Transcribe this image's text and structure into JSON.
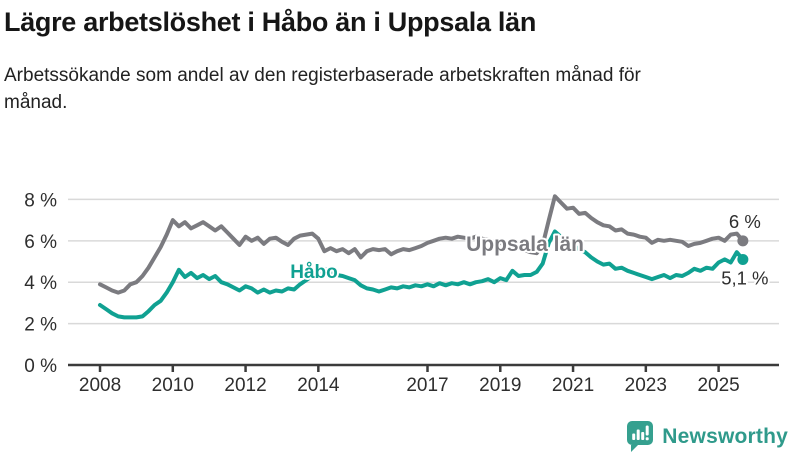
{
  "chart_data": {
    "type": "line",
    "title": "Lägre arbetslöshet i Håbo än i Uppsala län",
    "subtitle": "Arbetssökande som andel av den registerbaserade arbetskraften månad för månad.",
    "unit": "%",
    "grid": "horizontal",
    "legend_position": "inline-labels",
    "xlim": [
      2007.12,
      2026.66
    ],
    "ylim": [
      0,
      8.6
    ],
    "x_ticks": [
      2008,
      2010,
      2012,
      2014,
      2017,
      2019,
      2021,
      2023,
      2025
    ],
    "x_tick_labels": [
      "2008",
      "2010",
      "2012",
      "2014",
      "2017",
      "2019",
      "2021",
      "2023",
      "2025"
    ],
    "y_ticks": [
      0,
      2,
      4,
      6,
      8
    ],
    "y_tick_labels": [
      "0 %",
      "2 %",
      "4 %",
      "6 %",
      "8 %"
    ],
    "colors": {
      "grid": "#d9d9d9",
      "axis": "#3b3b3b",
      "text": "#2e2e2e"
    },
    "x_start": 2008,
    "points_per_year": 6,
    "series": [
      {
        "id": "uppsala",
        "name": "Uppsala län",
        "color": "#7b7b80",
        "end_value": 6.0,
        "end_label": {
          "text": "6 %",
          "position": "above"
        },
        "line_label": {
          "x": 2019.68,
          "y": 5.5,
          "font_size": 21
        },
        "values": [
          3.9,
          3.75,
          3.6,
          3.5,
          3.6,
          3.9,
          4.0,
          4.3,
          4.7,
          5.2,
          5.7,
          6.3,
          7.0,
          6.7,
          6.9,
          6.6,
          6.75,
          6.9,
          6.7,
          6.5,
          6.7,
          6.4,
          6.1,
          5.8,
          6.2,
          6.0,
          6.15,
          5.85,
          6.1,
          6.15,
          5.95,
          5.8,
          6.1,
          6.25,
          6.3,
          6.35,
          6.1,
          5.5,
          5.65,
          5.5,
          5.6,
          5.4,
          5.6,
          5.2,
          5.5,
          5.6,
          5.55,
          5.6,
          5.35,
          5.5,
          5.6,
          5.55,
          5.65,
          5.75,
          5.9,
          6.0,
          6.1,
          6.15,
          6.1,
          6.2,
          6.15,
          6.1,
          6.2,
          6.1,
          6.05,
          5.95,
          5.9,
          5.8,
          5.75,
          5.65,
          5.55,
          5.45,
          5.4,
          5.8,
          7.0,
          8.15,
          7.85,
          7.55,
          7.6,
          7.3,
          7.35,
          7.1,
          6.9,
          6.75,
          6.7,
          6.5,
          6.55,
          6.35,
          6.3,
          6.2,
          6.15,
          5.9,
          6.05,
          6.0,
          6.05,
          6.0,
          5.95,
          5.75,
          5.85,
          5.9,
          6.0,
          6.1,
          6.15,
          6.0,
          6.3,
          6.35,
          6.0
        ]
      },
      {
        "id": "habo",
        "name": "Håbo",
        "color": "#10a192",
        "end_value": 5.1,
        "end_label": {
          "text": "5,1 %",
          "position": "below"
        },
        "line_label": {
          "x": 2013.88,
          "y": 4.2,
          "font_size": 19
        },
        "values": [
          2.9,
          2.7,
          2.5,
          2.35,
          2.3,
          2.3,
          2.3,
          2.35,
          2.6,
          2.9,
          3.1,
          3.5,
          4.0,
          4.6,
          4.25,
          4.45,
          4.2,
          4.35,
          4.15,
          4.3,
          4.0,
          3.9,
          3.75,
          3.6,
          3.8,
          3.7,
          3.5,
          3.65,
          3.5,
          3.6,
          3.55,
          3.7,
          3.65,
          3.9,
          4.1,
          4.3,
          4.45,
          4.65,
          4.5,
          4.35,
          4.3,
          4.2,
          4.1,
          3.85,
          3.7,
          3.65,
          3.55,
          3.65,
          3.75,
          3.7,
          3.8,
          3.75,
          3.85,
          3.8,
          3.9,
          3.8,
          3.95,
          3.85,
          3.95,
          3.9,
          4.0,
          3.9,
          4.0,
          4.05,
          4.15,
          4.0,
          4.2,
          4.1,
          4.55,
          4.3,
          4.35,
          4.35,
          4.5,
          4.9,
          5.9,
          6.45,
          6.2,
          5.95,
          5.8,
          5.6,
          5.45,
          5.2,
          5.0,
          4.85,
          4.9,
          4.65,
          4.7,
          4.55,
          4.45,
          4.35,
          4.25,
          4.15,
          4.25,
          4.35,
          4.2,
          4.35,
          4.3,
          4.45,
          4.65,
          4.55,
          4.7,
          4.65,
          4.95,
          5.1,
          4.95,
          5.45,
          5.1
        ]
      }
    ]
  },
  "logo": {
    "wordmark": "Newsworthy",
    "icon": "chart-speech-bubble",
    "brand_color": "#2f9a8b"
  }
}
